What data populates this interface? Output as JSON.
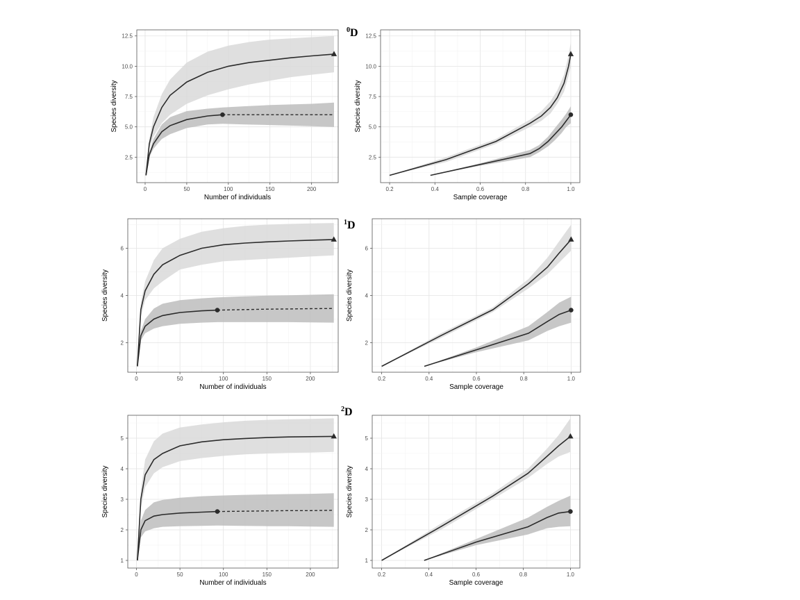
{
  "order_labels": [
    {
      "sup": "0",
      "main": "D"
    },
    {
      "sup": "1",
      "main": "D"
    },
    {
      "sup": "2",
      "main": "D"
    }
  ],
  "chart_data": [
    {
      "type": "line",
      "order": "0D",
      "ylabel": "Species diversity",
      "xlabel": "Number of individuals",
      "xlim": [
        -10,
        232
      ],
      "ylim": [
        0.4,
        13.0
      ],
      "xticks": [
        0,
        50,
        100,
        150,
        200
      ],
      "xtick_labels": [
        "0",
        "50",
        "100",
        "150",
        "200"
      ],
      "yticks": [
        2.5,
        5.0,
        7.5,
        10.0,
        12.5
      ],
      "ytick_labels": [
        "2.5",
        "5.0",
        "7.5",
        "10.0",
        "12.5"
      ],
      "grid": true,
      "series": [
        {
          "shade": "light",
          "marker": "triangle",
          "x": [
            1,
            5,
            10,
            20,
            30,
            50,
            75,
            100,
            125,
            150,
            175,
            200,
            227
          ],
          "y": [
            1,
            3.6,
            5.0,
            6.6,
            7.6,
            8.7,
            9.5,
            10.0,
            10.3,
            10.5,
            10.7,
            10.85,
            11.0
          ],
          "lower": [
            1,
            3.2,
            4.2,
            5.3,
            6.0,
            6.9,
            7.6,
            8.1,
            8.5,
            8.8,
            9.1,
            9.3,
            9.5
          ],
          "upper": [
            1,
            4.0,
            5.8,
            7.7,
            8.9,
            10.3,
            11.2,
            11.7,
            12.0,
            12.2,
            12.3,
            12.4,
            12.5
          ],
          "observed_index": 12,
          "dashed_from_index": null
        },
        {
          "shade": "dark",
          "marker": "circle",
          "x": [
            1,
            5,
            10,
            20,
            30,
            50,
            75,
            93,
            120,
            150,
            175,
            200,
            227
          ],
          "y": [
            1,
            2.7,
            3.6,
            4.6,
            5.1,
            5.6,
            5.9,
            6.0,
            6.0,
            6.0,
            6.0,
            6.0,
            6.0
          ],
          "lower": [
            1,
            2.5,
            3.2,
            4.0,
            4.4,
            4.9,
            5.2,
            5.25,
            5.2,
            5.15,
            5.1,
            5.05,
            5.0
          ],
          "upper": [
            1,
            2.9,
            4.0,
            5.2,
            5.8,
            6.3,
            6.5,
            6.6,
            6.7,
            6.8,
            6.85,
            6.9,
            7.0
          ],
          "observed_index": 7,
          "dashed_from_index": 7
        }
      ]
    },
    {
      "type": "line",
      "order": "0D",
      "ylabel": "Species diversity",
      "xlabel": "Sample coverage",
      "xlim": [
        0.16,
        1.04
      ],
      "ylim": [
        0.4,
        13.0
      ],
      "xticks": [
        0.2,
        0.4,
        0.6,
        0.8,
        1.0
      ],
      "xtick_labels": [
        "0.2",
        "0.4",
        "0.6",
        "0.8",
        "1.0"
      ],
      "yticks": [
        2.5,
        5.0,
        7.5,
        10.0,
        12.5
      ],
      "ytick_labels": [
        "2.5",
        "5.0",
        "7.5",
        "10.0",
        "12.5"
      ],
      "grid": true,
      "series": [
        {
          "shade": "light",
          "marker": "triangle",
          "x": [
            0.2,
            0.45,
            0.67,
            0.82,
            0.87,
            0.91,
            0.94,
            0.97,
            0.99,
            1.0
          ],
          "y": [
            1,
            2.3,
            3.8,
            5.3,
            5.9,
            6.6,
            7.4,
            8.6,
            10.0,
            11.0
          ],
          "lower": [
            1,
            2.1,
            3.6,
            5.0,
            5.5,
            6.1,
            6.9,
            7.9,
            9.2,
            10.0
          ],
          "upper": [
            1,
            2.5,
            4.0,
            5.6,
            6.3,
            7.1,
            8.0,
            9.3,
            10.9,
            12.0
          ],
          "observed_index": 9,
          "dashed_from_index": null
        },
        {
          "shade": "dark",
          "marker": "circle",
          "x": [
            0.38,
            0.6,
            0.82,
            0.86,
            0.9,
            0.93,
            0.96,
            0.98,
            1.0
          ],
          "y": [
            1,
            1.9,
            2.8,
            3.2,
            3.8,
            4.4,
            5.0,
            5.5,
            6.0
          ],
          "lower": [
            1,
            1.8,
            2.5,
            2.9,
            3.4,
            3.9,
            4.5,
            5.0,
            5.3
          ],
          "upper": [
            1,
            2.0,
            3.1,
            3.5,
            4.2,
            4.9,
            5.6,
            6.1,
            6.7
          ],
          "observed_index": 8,
          "dashed_from_index": null
        }
      ]
    },
    {
      "type": "line",
      "order": "1D",
      "ylabel": "Species diversity",
      "xlabel": "Number of individuals",
      "xlim": [
        -10,
        232
      ],
      "ylim": [
        0.75,
        7.25
      ],
      "xticks": [
        0,
        50,
        100,
        150,
        200
      ],
      "xtick_labels": [
        "0",
        "50",
        "100",
        "150",
        "200"
      ],
      "yticks": [
        2,
        4,
        6
      ],
      "ytick_labels": [
        "2",
        "4",
        "6"
      ],
      "grid": true,
      "series": [
        {
          "shade": "light",
          "marker": "triangle",
          "x": [
            1,
            5,
            10,
            20,
            30,
            50,
            75,
            100,
            125,
            150,
            175,
            200,
            227
          ],
          "y": [
            1,
            3.4,
            4.2,
            4.9,
            5.3,
            5.7,
            6.0,
            6.15,
            6.22,
            6.27,
            6.31,
            6.34,
            6.37
          ],
          "lower": [
            1,
            3.1,
            3.8,
            4.3,
            4.6,
            5.1,
            5.3,
            5.45,
            5.5,
            5.55,
            5.6,
            5.65,
            5.7
          ],
          "upper": [
            1,
            3.7,
            4.6,
            5.5,
            6.0,
            6.4,
            6.7,
            6.85,
            6.95,
            7.0,
            7.03,
            7.05,
            7.07
          ],
          "observed_index": 12,
          "dashed_from_index": null
        },
        {
          "shade": "dark",
          "marker": "circle",
          "x": [
            1,
            5,
            10,
            20,
            30,
            50,
            75,
            93,
            120,
            150,
            175,
            200,
            227
          ],
          "y": [
            1,
            2.3,
            2.7,
            3.0,
            3.15,
            3.28,
            3.35,
            3.38,
            3.4,
            3.42,
            3.43,
            3.44,
            3.45
          ],
          "lower": [
            1,
            2.1,
            2.4,
            2.6,
            2.7,
            2.8,
            2.85,
            2.87,
            2.87,
            2.87,
            2.87,
            2.86,
            2.85
          ],
          "upper": [
            1,
            2.5,
            3.0,
            3.45,
            3.65,
            3.8,
            3.88,
            3.92,
            3.96,
            3.99,
            4.01,
            4.03,
            4.05
          ],
          "observed_index": 7,
          "dashed_from_index": 7
        }
      ]
    },
    {
      "type": "line",
      "order": "1D",
      "ylabel": "Species diversity",
      "xlabel": "Sample coverage",
      "xlim": [
        0.16,
        1.04
      ],
      "ylim": [
        0.75,
        7.25
      ],
      "xticks": [
        0.2,
        0.4,
        0.6,
        0.8,
        1.0
      ],
      "xtick_labels": [
        "0.2",
        "0.4",
        "0.6",
        "0.8",
        "1.0"
      ],
      "yticks": [
        2,
        4,
        6
      ],
      "ytick_labels": [
        "2",
        "4",
        "6"
      ],
      "grid": true,
      "series": [
        {
          "shade": "light",
          "marker": "triangle",
          "x": [
            0.2,
            0.45,
            0.67,
            0.82,
            0.9,
            0.95,
            1.0
          ],
          "y": [
            1,
            2.3,
            3.4,
            4.5,
            5.2,
            5.8,
            6.37
          ],
          "lower": [
            1,
            2.2,
            3.3,
            4.3,
            4.9,
            5.4,
            5.9
          ],
          "upper": [
            1,
            2.4,
            3.5,
            4.7,
            5.6,
            6.3,
            7.0
          ],
          "observed_index": 6,
          "dashed_from_index": null
        },
        {
          "shade": "dark",
          "marker": "circle",
          "x": [
            0.38,
            0.6,
            0.82,
            0.9,
            0.95,
            1.0
          ],
          "y": [
            1,
            1.7,
            2.4,
            2.9,
            3.2,
            3.38
          ],
          "lower": [
            1,
            1.6,
            2.1,
            2.5,
            2.7,
            2.85
          ],
          "upper": [
            1,
            1.8,
            2.7,
            3.3,
            3.7,
            3.95
          ],
          "observed_index": 5,
          "dashed_from_index": null
        }
      ]
    },
    {
      "type": "line",
      "order": "2D",
      "ylabel": "Species diversity",
      "xlabel": "Number of individuals",
      "xlim": [
        -10,
        232
      ],
      "ylim": [
        0.75,
        5.75
      ],
      "xticks": [
        0,
        50,
        100,
        150,
        200
      ],
      "xtick_labels": [
        "0",
        "50",
        "100",
        "150",
        "200"
      ],
      "yticks": [
        1,
        2,
        3,
        4,
        5
      ],
      "ytick_labels": [
        "1",
        "2",
        "3",
        "4",
        "5"
      ],
      "grid": true,
      "series": [
        {
          "shade": "light",
          "marker": "triangle",
          "x": [
            1,
            5,
            10,
            20,
            30,
            50,
            75,
            100,
            125,
            150,
            175,
            200,
            227
          ],
          "y": [
            1,
            3.0,
            3.8,
            4.3,
            4.5,
            4.75,
            4.88,
            4.95,
            4.99,
            5.02,
            5.04,
            5.05,
            5.06
          ],
          "lower": [
            1,
            2.7,
            3.4,
            3.85,
            4.05,
            4.25,
            4.35,
            4.42,
            4.47,
            4.5,
            4.52,
            4.53,
            4.55
          ],
          "upper": [
            1,
            3.3,
            4.3,
            4.9,
            5.15,
            5.35,
            5.45,
            5.52,
            5.57,
            5.6,
            5.62,
            5.63,
            5.65
          ],
          "observed_index": 12,
          "dashed_from_index": null
        },
        {
          "shade": "dark",
          "marker": "circle",
          "x": [
            1,
            5,
            10,
            20,
            30,
            50,
            75,
            93,
            120,
            150,
            175,
            200,
            227
          ],
          "y": [
            1,
            2.0,
            2.3,
            2.45,
            2.5,
            2.55,
            2.58,
            2.6,
            2.61,
            2.62,
            2.63,
            2.63,
            2.64
          ],
          "lower": [
            1,
            1.75,
            1.95,
            2.05,
            2.1,
            2.12,
            2.13,
            2.14,
            2.13,
            2.12,
            2.12,
            2.11,
            2.1
          ],
          "upper": [
            1,
            2.3,
            2.65,
            2.9,
            2.98,
            3.05,
            3.1,
            3.12,
            3.14,
            3.16,
            3.17,
            3.18,
            3.2
          ],
          "observed_index": 7,
          "dashed_from_index": 7
        }
      ]
    },
    {
      "type": "line",
      "order": "2D",
      "ylabel": "Species diversity",
      "xlabel": "Sample coverage",
      "xlim": [
        0.16,
        1.04
      ],
      "ylim": [
        0.75,
        5.75
      ],
      "xticks": [
        0.2,
        0.4,
        0.6,
        0.8,
        1.0
      ],
      "xtick_labels": [
        "0.2",
        "0.4",
        "0.6",
        "0.8",
        "1.0"
      ],
      "yticks": [
        1,
        2,
        3,
        4,
        5
      ],
      "ytick_labels": [
        "1",
        "2",
        "3",
        "4",
        "5"
      ],
      "grid": true,
      "series": [
        {
          "shade": "light",
          "marker": "triangle",
          "x": [
            0.2,
            0.45,
            0.67,
            0.82,
            0.9,
            0.95,
            1.0
          ],
          "y": [
            1,
            2.1,
            3.1,
            3.85,
            4.4,
            4.75,
            5.06
          ],
          "lower": [
            1,
            2.0,
            3.0,
            3.7,
            4.15,
            4.4,
            4.55
          ],
          "upper": [
            1,
            2.2,
            3.2,
            4.0,
            4.65,
            5.1,
            5.65
          ],
          "observed_index": 6,
          "dashed_from_index": null
        },
        {
          "shade": "dark",
          "marker": "circle",
          "x": [
            0.38,
            0.6,
            0.82,
            0.9,
            0.95,
            1.0
          ],
          "y": [
            1,
            1.6,
            2.1,
            2.4,
            2.55,
            2.6
          ],
          "lower": [
            1,
            1.5,
            1.85,
            2.05,
            2.1,
            2.12
          ],
          "upper": [
            1,
            1.7,
            2.4,
            2.75,
            2.95,
            3.12
          ],
          "observed_index": 5,
          "dashed_from_index": null
        }
      ]
    }
  ]
}
